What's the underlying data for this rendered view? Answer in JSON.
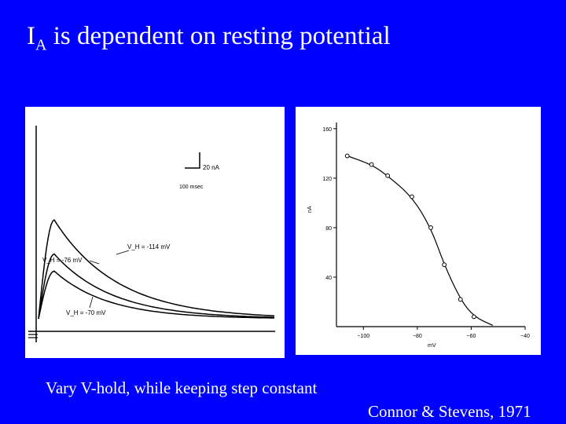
{
  "slide": {
    "title_main": "I",
    "title_sub": "A",
    "title_rest": " is dependent on resting potential",
    "caption_left": "Vary V-hold, while keeping step constant",
    "citation": "Connor  & Stevens, 1971",
    "background": "#0000ff"
  },
  "chart_data": [
    {
      "type": "line",
      "title": "",
      "scale_bar": {
        "current": "20 nA",
        "time": "100 msec"
      },
      "annotations": [
        "V_H = -114 mV",
        "V_H = -76 mV",
        "V_H = -70 mV"
      ],
      "series": [
        {
          "name": "V_H = -114 mV",
          "peak_nA": 145
        },
        {
          "name": "V_H = -76 mV",
          "peak_nA": 95
        },
        {
          "name": "V_H = -70 mV",
          "peak_nA": 70
        }
      ]
    },
    {
      "type": "line",
      "title": "",
      "xlabel": "mV",
      "ylabel": "nA",
      "xlim": [
        -110,
        -40
      ],
      "ylim": [
        0,
        165
      ],
      "xticks": [
        -100,
        -80,
        -60,
        -40
      ],
      "yticks": [
        40,
        80,
        120,
        160
      ],
      "x": [
        -106,
        -97,
        -91,
        -82,
        -75,
        -70,
        -64,
        -59
      ],
      "y": [
        138,
        131,
        122,
        105,
        80,
        50,
        22,
        8
      ]
    }
  ]
}
